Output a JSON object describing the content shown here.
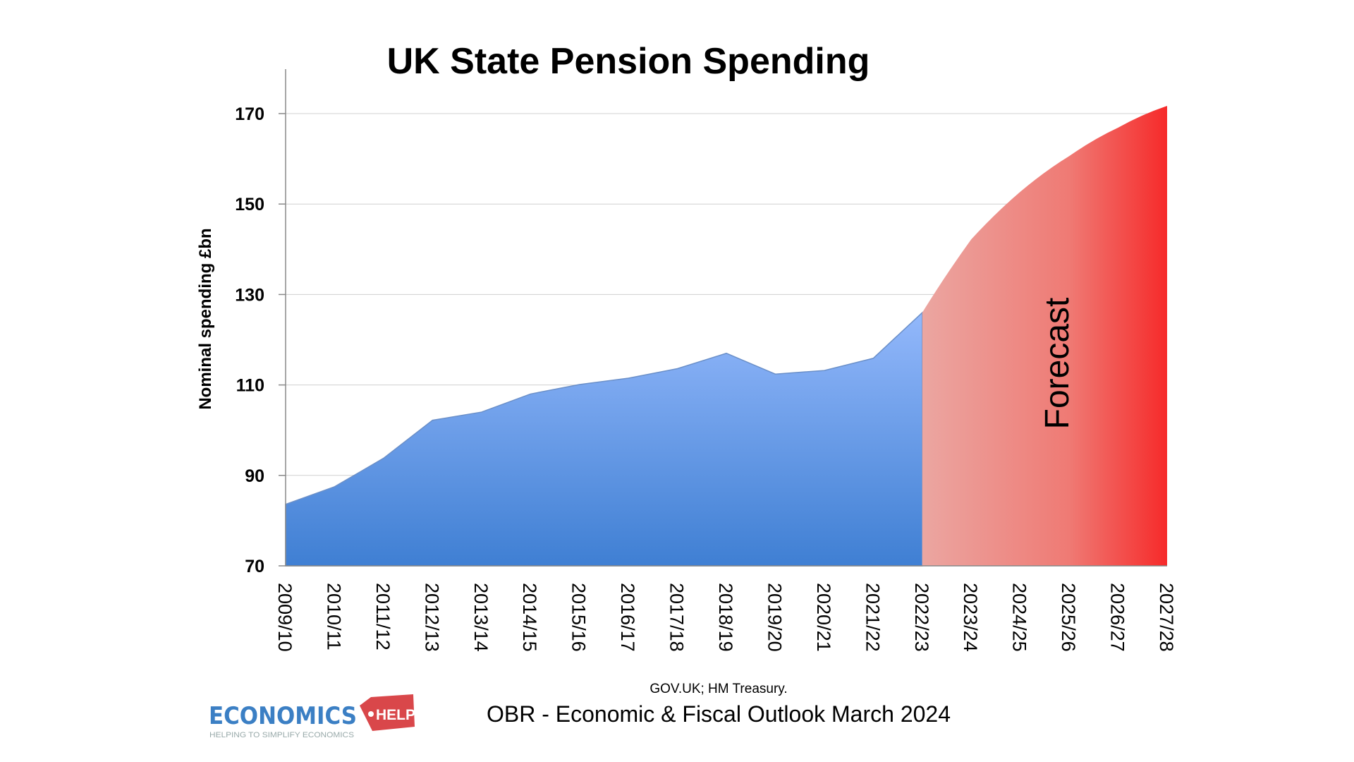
{
  "chart_data": {
    "type": "area",
    "title": "UK State Pension Spending",
    "xlabel": "",
    "ylabel": "Nominal spending £bn",
    "ylim": [
      70,
      180
    ],
    "yticks": [
      70,
      90,
      110,
      130,
      150,
      170
    ],
    "grid": true,
    "categories": [
      "2009/10",
      "2010/11",
      "2011/12",
      "2012/13",
      "2013/14",
      "2014/15",
      "2015/16",
      "2016/17",
      "2017/18",
      "2018/19",
      "2019/20",
      "2020/21",
      "2021/22",
      "2022/23",
      "2023/24",
      "2024/25",
      "2025/26",
      "2026/27",
      "2027/28"
    ],
    "values": [
      83.6,
      87.5,
      93.8,
      102.2,
      104.0,
      108.0,
      110.1,
      111.5,
      113.6,
      117.0,
      112.4,
      113.2,
      115.9,
      126.0,
      142.2,
      152.7,
      160.6,
      166.9,
      171.7
    ],
    "forecast_start": "2022/23",
    "annotation": "Forecast",
    "colors": {
      "actual_top": "#93b8fb",
      "actual_bottom": "#3f7fd3",
      "forecast_left": "#eba6a1",
      "forecast_right": "#f62a2a"
    }
  },
  "source": "GOV.UK; HM Treasury.",
  "footnote": "OBR - Economic & Fiscal Outlook March 2024",
  "logo": {
    "text": "ECONOMICS",
    "tag": "HELP",
    "tagline": "HELPING TO SIMPLIFY ECONOMICS"
  }
}
